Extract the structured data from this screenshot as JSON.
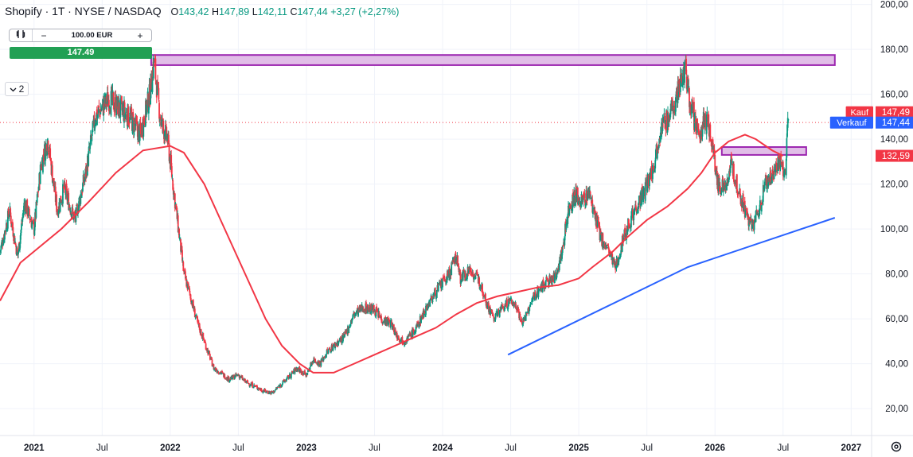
{
  "header": {
    "symbol": "Shopify · 1T · NYSE / NASDAQ",
    "open_label": "O",
    "open": "143,42",
    "high_label": "H",
    "high": "147,89",
    "low_label": "L",
    "low": "142,11",
    "close_label": "C",
    "close": "147,44",
    "change": "+3,27 (+2,27%)"
  },
  "order_panel": {
    "quantity": "100.00 EUR",
    "minus_label": "−",
    "plus_label": "+",
    "price": "147.49"
  },
  "indicators_toggle": {
    "count": "2"
  },
  "colors": {
    "up": "#089981",
    "down": "#f23645",
    "ma": "#f23645",
    "trendline": "#2962ff",
    "zone_fill": "#e1bee7",
    "zone_border": "#9c27b0",
    "buy_tag": "#f23645",
    "sell_tag": "#2962ff",
    "ma_tag": "#f23645"
  },
  "icons": [
    "candles-icon",
    "chevron-down-icon",
    "settings-icon"
  ],
  "chart_data": {
    "type": "candlestick",
    "x_axis": {
      "labels": [
        "2021",
        "Jul",
        "2022",
        "Jul",
        "2023",
        "Jul",
        "2024",
        "Jul",
        "2025",
        "Jul",
        "2026",
        "Jul",
        "2027"
      ],
      "positions": [
        2021.0,
        2021.5,
        2022.0,
        2022.5,
        2023.0,
        2023.5,
        2024.0,
        2024.5,
        2025.0,
        2025.5,
        2026.0,
        2026.5,
        2027.0
      ],
      "range": [
        2020.75,
        2027.15
      ]
    },
    "y_axis": {
      "range": [
        8,
        202
      ],
      "ticks": [
        20,
        40,
        60,
        80,
        100,
        120,
        140,
        160,
        180,
        200
      ],
      "tick_labels": [
        "20,00",
        "40,00",
        "60,00",
        "80,00",
        "100,00",
        "120,00",
        "140,00",
        "160,00",
        "180,00",
        "200,00"
      ]
    },
    "price_path": [
      [
        2020.75,
        90
      ],
      [
        2020.82,
        108
      ],
      [
        2020.88,
        88
      ],
      [
        2020.93,
        112
      ],
      [
        2021.0,
        100
      ],
      [
        2021.05,
        128
      ],
      [
        2021.1,
        140
      ],
      [
        2021.17,
        108
      ],
      [
        2021.22,
        118
      ],
      [
        2021.3,
        104
      ],
      [
        2021.38,
        125
      ],
      [
        2021.45,
        150
      ],
      [
        2021.55,
        158
      ],
      [
        2021.62,
        154
      ],
      [
        2021.7,
        150
      ],
      [
        2021.78,
        142
      ],
      [
        2021.85,
        160
      ],
      [
        2021.88,
        175
      ],
      [
        2021.93,
        148
      ],
      [
        2021.98,
        140
      ],
      [
        2022.02,
        120
      ],
      [
        2022.06,
        100
      ],
      [
        2022.1,
        80
      ],
      [
        2022.14,
        72
      ],
      [
        2022.2,
        58
      ],
      [
        2022.25,
        50
      ],
      [
        2022.32,
        38
      ],
      [
        2022.37,
        36
      ],
      [
        2022.43,
        33
      ],
      [
        2022.5,
        35
      ],
      [
        2022.55,
        32
      ],
      [
        2022.62,
        30
      ],
      [
        2022.68,
        28
      ],
      [
        2022.75,
        27
      ],
      [
        2022.8,
        30
      ],
      [
        2022.87,
        34
      ],
      [
        2022.93,
        38
      ],
      [
        2023.0,
        35
      ],
      [
        2023.05,
        42
      ],
      [
        2023.1,
        40
      ],
      [
        2023.15,
        45
      ],
      [
        2023.2,
        48
      ],
      [
        2023.28,
        52
      ],
      [
        2023.35,
        62
      ],
      [
        2023.42,
        65
      ],
      [
        2023.5,
        64
      ],
      [
        2023.55,
        60
      ],
      [
        2023.62,
        58
      ],
      [
        2023.67,
        52
      ],
      [
        2023.72,
        50
      ],
      [
        2023.8,
        55
      ],
      [
        2023.88,
        65
      ],
      [
        2023.95,
        72
      ],
      [
        2024.0,
        76
      ],
      [
        2024.05,
        80
      ],
      [
        2024.1,
        88
      ],
      [
        2024.13,
        78
      ],
      [
        2024.2,
        82
      ],
      [
        2024.28,
        76
      ],
      [
        2024.33,
        66
      ],
      [
        2024.38,
        60
      ],
      [
        2024.42,
        64
      ],
      [
        2024.5,
        68
      ],
      [
        2024.55,
        65
      ],
      [
        2024.58,
        58
      ],
      [
        2024.62,
        62
      ],
      [
        2024.67,
        70
      ],
      [
        2024.75,
        76
      ],
      [
        2024.82,
        78
      ],
      [
        2024.88,
        90
      ],
      [
        2024.92,
        108
      ],
      [
        2024.97,
        115
      ],
      [
        2025.02,
        112
      ],
      [
        2025.08,
        116
      ],
      [
        2025.12,
        105
      ],
      [
        2025.17,
        95
      ],
      [
        2025.22,
        90
      ],
      [
        2025.27,
        82
      ],
      [
        2025.3,
        90
      ],
      [
        2025.35,
        100
      ],
      [
        2025.42,
        110
      ],
      [
        2025.48,
        116
      ],
      [
        2025.55,
        128
      ],
      [
        2025.6,
        145
      ],
      [
        2025.67,
        150
      ],
      [
        2025.72,
        160
      ],
      [
        2025.78,
        172
      ],
      [
        2025.82,
        156
      ],
      [
        2025.88,
        140
      ],
      [
        2025.93,
        150
      ],
      [
        2025.98,
        138
      ],
      [
        2026.02,
        120
      ],
      [
        2026.07,
        118
      ],
      [
        2026.12,
        128
      ],
      [
        2026.17,
        118
      ],
      [
        2026.22,
        108
      ],
      [
        2026.27,
        100
      ],
      [
        2026.32,
        108
      ],
      [
        2026.37,
        120
      ],
      [
        2026.42,
        124
      ],
      [
        2026.47,
        130
      ],
      [
        2026.52,
        123
      ],
      [
        2026.53,
        145
      ],
      [
        2026.54,
        147.44
      ]
    ],
    "candle_seed": 7,
    "moving_average": [
      [
        2020.75,
        68
      ],
      [
        2020.9,
        85
      ],
      [
        2021.0,
        90
      ],
      [
        2021.2,
        100
      ],
      [
        2021.4,
        112
      ],
      [
        2021.6,
        125
      ],
      [
        2021.8,
        135
      ],
      [
        2022.0,
        137
      ],
      [
        2022.1,
        134
      ],
      [
        2022.25,
        120
      ],
      [
        2022.4,
        100
      ],
      [
        2022.55,
        80
      ],
      [
        2022.7,
        60
      ],
      [
        2022.82,
        48
      ],
      [
        2022.95,
        40
      ],
      [
        2023.05,
        36
      ],
      [
        2023.2,
        36
      ],
      [
        2023.35,
        40
      ],
      [
        2023.5,
        44
      ],
      [
        2023.65,
        48
      ],
      [
        2023.8,
        52
      ],
      [
        2023.95,
        56
      ],
      [
        2024.1,
        62
      ],
      [
        2024.25,
        67
      ],
      [
        2024.4,
        70
      ],
      [
        2024.55,
        72
      ],
      [
        2024.7,
        74
      ],
      [
        2024.85,
        75
      ],
      [
        2025.0,
        78
      ],
      [
        2025.1,
        83
      ],
      [
        2025.25,
        90
      ],
      [
        2025.35,
        96
      ],
      [
        2025.5,
        104
      ],
      [
        2025.65,
        110
      ],
      [
        2025.8,
        118
      ],
      [
        2025.9,
        125
      ],
      [
        2026.0,
        134
      ],
      [
        2026.1,
        139
      ],
      [
        2026.22,
        142
      ],
      [
        2026.3,
        140
      ],
      [
        2026.42,
        135
      ],
      [
        2026.5,
        132.59
      ]
    ],
    "trendline": [
      [
        2024.48,
        44
      ],
      [
        2025.8,
        83
      ],
      [
        2026.88,
        105
      ]
    ],
    "zones": [
      {
        "x1": 2021.86,
        "x2": 2026.88,
        "y1": 173,
        "y2": 177.5
      },
      {
        "x1": 2026.05,
        "x2": 2026.67,
        "y1": 133,
        "y2": 136.5
      }
    ],
    "last_price_line": 147.44,
    "price_tags": [
      {
        "label": "Kauf",
        "value": "147,49",
        "y": 152,
        "color": "#f23645"
      },
      {
        "label": "Verkauf",
        "value": "147,44",
        "y": 147.4,
        "color": "#2962ff"
      },
      {
        "label": "",
        "value": "132,59",
        "y": 132.59,
        "color": "#f23645"
      }
    ]
  }
}
